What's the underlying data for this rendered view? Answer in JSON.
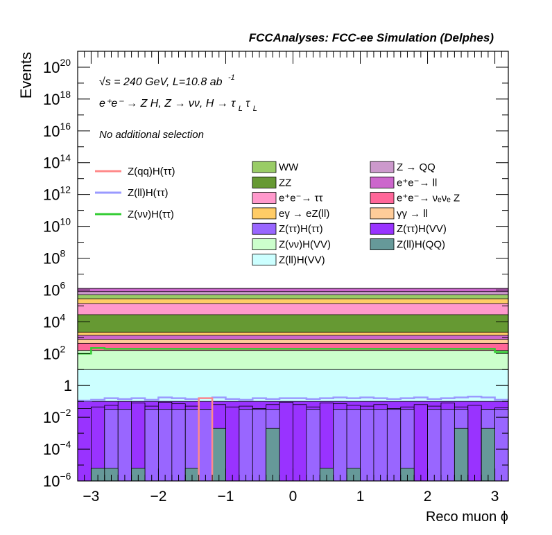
{
  "chart_data": {
    "type": "histogram-stack",
    "title": "FCCAnalyses: FCC-ee Simulation (Delphes)",
    "ylabel": "Events",
    "xlabel": "Reco muon ϕ",
    "ylog": true,
    "ylim": [
      1e-06,
      1e+21
    ],
    "xlim": [
      -3.2,
      3.2
    ],
    "xticks": [
      -3,
      -2,
      -1,
      0,
      1,
      2,
      3
    ],
    "xtick_labels": [
      "−3",
      "−2",
      "−1",
      "0",
      "1",
      "2",
      "3"
    ],
    "yticks": [
      {
        "exp": -6,
        "label_base": "10",
        "label_exp": "−6"
      },
      {
        "exp": -4,
        "label_base": "10",
        "label_exp": "−4"
      },
      {
        "exp": -2,
        "label_base": "10",
        "label_exp": "−2"
      },
      {
        "exp": 0,
        "label_base": "1",
        "label_exp": ""
      },
      {
        "exp": 2,
        "label_base": "10",
        "label_exp": "2"
      },
      {
        "exp": 4,
        "label_base": "10",
        "label_exp": "4"
      },
      {
        "exp": 6,
        "label_base": "10",
        "label_exp": "6"
      },
      {
        "exp": 8,
        "label_base": "10",
        "label_exp": "8"
      },
      {
        "exp": 10,
        "label_base": "10",
        "label_exp": "10"
      },
      {
        "exp": 12,
        "label_base": "10",
        "label_exp": "12"
      },
      {
        "exp": 14,
        "label_base": "10",
        "label_exp": "14"
      },
      {
        "exp": 16,
        "label_base": "10",
        "label_exp": "16"
      },
      {
        "exp": 18,
        "label_base": "10",
        "label_exp": "18"
      },
      {
        "exp": 20,
        "label_base": "10",
        "label_exp": "20"
      }
    ],
    "annotations": {
      "sqrt_s": "√s = 240 GeV, L=10.8 ab",
      "lumi_exp": "-1",
      "process": "e⁺e⁻ → Z H, Z → νν, H → τ",
      "process_sub1": "L",
      "process_tau2": "τ",
      "process_sub2": "L",
      "selection": "No additional selection"
    },
    "legend": {
      "signal": [
        {
          "label": "Z(qq)H(ττ)",
          "color": "#ff8a8a"
        },
        {
          "label": "Z(ll)H(ττ)",
          "color": "#9a9aff"
        },
        {
          "label": "Z(νν)H(ττ)",
          "color": "#33cc33"
        }
      ],
      "backgrounds_col1": [
        {
          "label": "WW",
          "color": "#99cc66"
        },
        {
          "label": "ZZ",
          "color": "#669933"
        },
        {
          "label": "e⁺e⁻→ ττ",
          "color": "#ff99cc"
        },
        {
          "label": "eγ → eZ(ll)",
          "color": "#ffcc66"
        },
        {
          "label": "Z(ττ)H(ττ)",
          "color": "#9966ff"
        },
        {
          "label": "Z(νν)H(VV)",
          "color": "#ccffcc"
        },
        {
          "label": "Z(ll)H(VV)",
          "color": "#ccffff"
        }
      ],
      "backgrounds_col2": [
        {
          "label": "Z → QQ",
          "color": "#cc99cc"
        },
        {
          "label": "e⁺e⁻→ ll",
          "color": "#cc66cc"
        },
        {
          "label": "e⁺e⁻→ νₑνₑ Z",
          "color": "#ff6699"
        },
        {
          "label": "γγ → ll",
          "color": "#ffcc99"
        },
        {
          "label": "Z(ττ)H(VV)",
          "color": "#9933ff"
        },
        {
          "label": "Z(ll)H(QQ)",
          "color": "#669999"
        }
      ]
    },
    "stack_bands": [
      {
        "name": "Z(ll)H(QQ)",
        "color": "#669999",
        "top_exp": -5.2
      },
      {
        "name": "Z(ττ)H(VV)",
        "color": "#9933ff",
        "top_exp": -1.0
      },
      {
        "name": "Z(ττ)H(ττ)",
        "color": "#9966ff",
        "top_exp": -1.5
      },
      {
        "name": "Z(ll)H(VV)",
        "color": "#ccffff",
        "top_exp": 1.0
      },
      {
        "name": "Z(νν)H(VV)",
        "color": "#ccffcc",
        "top_exp": 2.2
      },
      {
        "name": "e⁺e⁻→ νₑνₑ Z",
        "color": "#ff6699",
        "top_exp": 2.65
      },
      {
        "name": "γγ → ll",
        "color": "#ffcc99",
        "top_exp": 2.9
      },
      {
        "name": "e⁺e⁻→ ll",
        "color": "#cc66cc",
        "top_exp": 3.15
      },
      {
        "name": "eγ → eZ(ll)",
        "color": "#ffcc66",
        "top_exp": 3.35
      },
      {
        "name": "ZZ",
        "color": "#669933",
        "top_exp": 4.45
      },
      {
        "name": "e⁺e⁻→ ττ",
        "color": "#ff99cc",
        "top_exp": 5.15
      },
      {
        "name": "eγ → eZ(ll) ",
        "color": "#ffcc66",
        "top_exp": 5.45
      },
      {
        "name": "WW",
        "color": "#99cc66",
        "top_exp": 5.7
      },
      {
        "name": "Z → QQ",
        "color": "#cc99cc",
        "top_exp": 5.9
      },
      {
        "name": "e⁺e⁻→ ll ",
        "color": "#cc66cc",
        "top_exp": 6.1
      }
    ],
    "bins": {
      "edges_start": -3.2,
      "edges_stop": 3.2,
      "n": 32,
      "ztautau_hvv_exp": [
        -1.45,
        -1.35,
        -1.25,
        -1.0,
        -1.1,
        -1.3,
        -1.05,
        -1.15,
        -1.3,
        -1.55,
        -1.2,
        -1.35,
        -1.3,
        -1.45,
        -1.2,
        -1.05,
        -1.2,
        -1.35,
        -1.1,
        -1.15,
        -1.25,
        -1.3,
        -1.2,
        -1.45,
        -1.35,
        -1.2,
        -1.3,
        -1.1,
        -1.35,
        -1.25,
        -1.5,
        -1.4
      ],
      "ztautau_htautau_exp": [
        -6.2,
        -6.2,
        -1.5,
        -1.5,
        -6.2,
        -1.5,
        -1.5,
        -1.5,
        -1.5,
        -1.5,
        -6.2,
        -6.2,
        -1.5,
        -1.5,
        -1.5,
        -6.2,
        -6.2,
        -1.5,
        -6.2,
        -1.5,
        -1.5,
        -1.5,
        -1.5,
        -1.5,
        -1.5,
        -6.2,
        -1.5,
        -1.5,
        -1.5,
        -6.2,
        -1.5,
        -1.5
      ],
      "zllhqq_exp": [
        -6.2,
        -5.2,
        -5.2,
        -6.2,
        -5.2,
        -6.2,
        -6.2,
        -6.2,
        -5.2,
        -6.2,
        -2.7,
        -6.2,
        -6.2,
        -6.2,
        -2.7,
        -6.2,
        -6.2,
        -6.2,
        -5.2,
        -6.2,
        -5.2,
        -6.2,
        -6.2,
        -6.2,
        -5.2,
        -6.2,
        -6.2,
        -6.2,
        -2.7,
        -6.2,
        -2.7,
        -6.2
      ],
      "zll_htautau_exp": [
        -0.95,
        -0.9,
        -0.8,
        -0.85,
        -0.8,
        -0.9,
        -0.75,
        -0.8,
        -0.85,
        -0.8,
        -0.75,
        -0.85,
        -0.9,
        -0.8,
        -0.85,
        -0.8,
        -0.8,
        -0.85,
        -0.8,
        -0.75,
        -0.8,
        -0.75,
        -0.8,
        -0.85,
        -0.8,
        -0.75,
        -0.85,
        -0.8,
        -0.75,
        -0.7,
        -0.75,
        -0.9
      ],
      "znunu_htautau_exp": [
        2.0,
        2.35,
        2.3,
        2.3,
        2.3,
        2.3,
        2.3,
        2.3,
        2.3,
        2.3,
        2.3,
        2.3,
        2.3,
        2.3,
        2.3,
        2.3,
        2.3,
        2.3,
        2.3,
        2.3,
        2.3,
        2.3,
        2.3,
        2.3,
        2.3,
        2.3,
        2.3,
        2.3,
        2.3,
        2.3,
        2.3,
        2.1
      ],
      "zqq_htautau": {
        "bin_low": -1.4,
        "bin_high": -1.2,
        "top_exp": -0.8
      }
    }
  }
}
